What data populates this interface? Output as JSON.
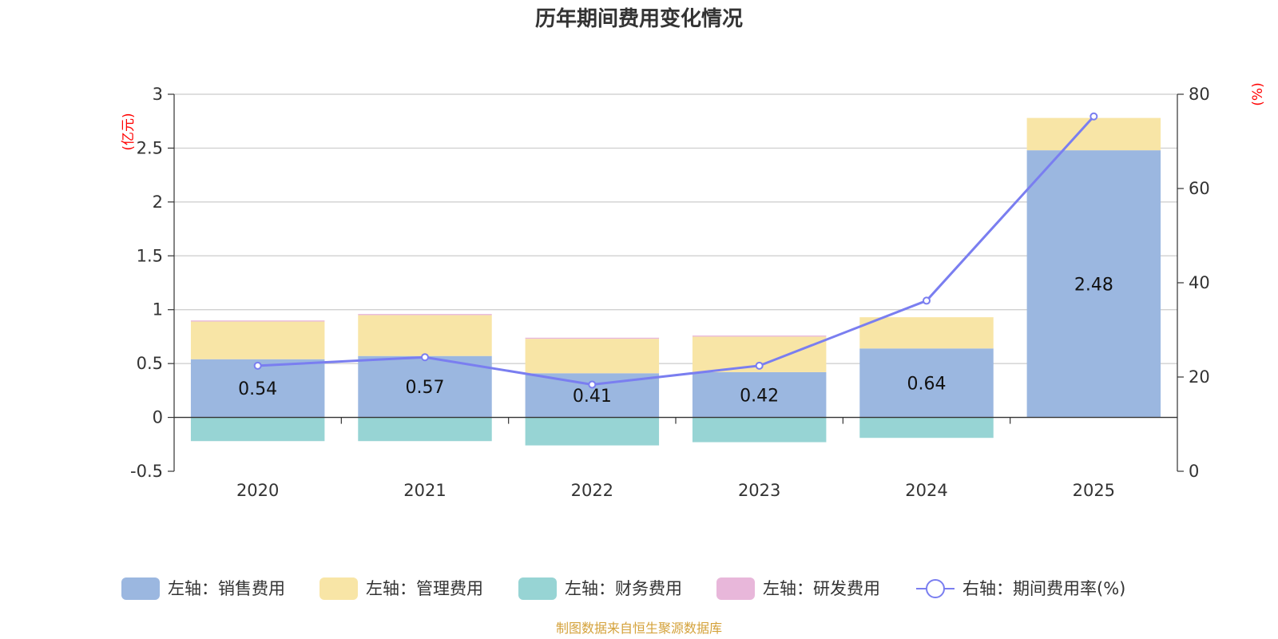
{
  "chart_data": {
    "type": "bar",
    "stacked": true,
    "title": "历年期间费用变化情况",
    "categories": [
      "2020",
      "2021",
      "2022",
      "2023",
      "2024",
      "2025"
    ],
    "y_left": {
      "label": "(亿元)",
      "ylim": [
        -0.5,
        3
      ],
      "ticks": [
        -0.5,
        0,
        0.5,
        1,
        1.5,
        2,
        2.5,
        3
      ],
      "tick_labels": [
        "-0.5",
        "0",
        "0.5",
        "1",
        "1.5",
        "2",
        "2.5",
        "3"
      ],
      "grid": true
    },
    "y_right": {
      "label": "(%)",
      "ylim": [
        0,
        80
      ],
      "ticks": [
        0,
        20,
        40,
        60,
        80
      ],
      "tick_labels": [
        "0",
        "20",
        "40",
        "60",
        "80"
      ]
    },
    "series": [
      {
        "name": "左轴：销售费用",
        "axis": "left",
        "type": "bar",
        "color": "#9bb7e0",
        "values": [
          0.54,
          0.57,
          0.41,
          0.42,
          0.64,
          2.48
        ],
        "labels": [
          "0.54",
          "0.57",
          "0.41",
          "0.42",
          "0.64",
          "2.48"
        ]
      },
      {
        "name": "左轴：管理费用",
        "axis": "left",
        "type": "bar",
        "color": "#f8e5a6",
        "values": [
          0.35,
          0.38,
          0.32,
          0.33,
          0.29,
          0.3
        ]
      },
      {
        "name": "左轴：财务费用",
        "axis": "left",
        "type": "bar",
        "color": "#97d4d4",
        "values": [
          -0.22,
          -0.22,
          -0.26,
          -0.23,
          -0.19,
          0
        ]
      },
      {
        "name": "左轴：研发费用",
        "axis": "left",
        "type": "bar",
        "color": "#e8b7da",
        "values": [
          0.01,
          0.01,
          0.01,
          0.01,
          0,
          0
        ]
      },
      {
        "name": "右轴：期间费用率(%)",
        "axis": "right",
        "type": "line",
        "color": "#7a7ef0",
        "values": [
          22.4,
          24.2,
          18.4,
          22.4,
          36.2,
          75.3
        ]
      }
    ],
    "legend_position": "bottom",
    "source": "制图数据来自恒生聚源数据库",
    "source_color": "#d4a23b",
    "axis_label_color": "#ff0000"
  }
}
